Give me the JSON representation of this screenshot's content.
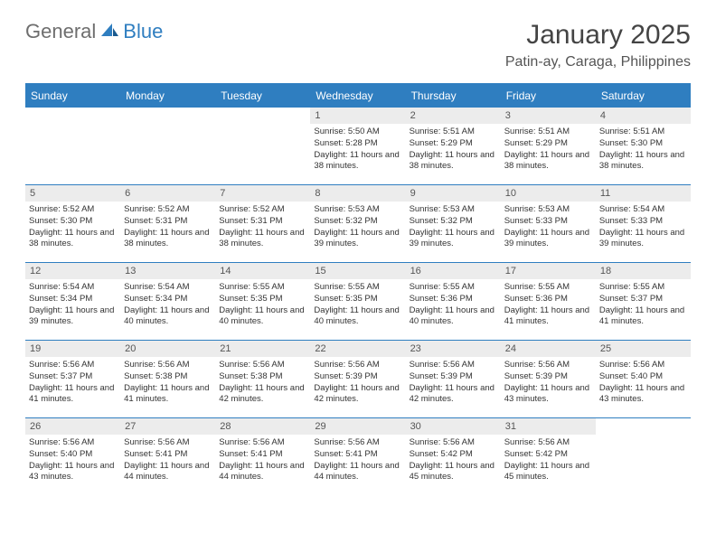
{
  "logo": {
    "part1": "General",
    "part2": "Blue"
  },
  "title": "January 2025",
  "location": "Patin-ay, Caraga, Philippines",
  "colors": {
    "accent": "#2f7ec0",
    "header_text": "#ffffff",
    "logo_gray": "#6e6e6e",
    "logo_blue": "#2f7ec0",
    "day_num_bg": "#ececec",
    "text": "#333333",
    "background": "#ffffff"
  },
  "day_headers": [
    "Sunday",
    "Monday",
    "Tuesday",
    "Wednesday",
    "Thursday",
    "Friday",
    "Saturday"
  ],
  "weeks": [
    [
      null,
      null,
      null,
      {
        "n": "1",
        "sr": "5:50 AM",
        "ss": "5:28 PM",
        "dl": "11 hours and 38 minutes."
      },
      {
        "n": "2",
        "sr": "5:51 AM",
        "ss": "5:29 PM",
        "dl": "11 hours and 38 minutes."
      },
      {
        "n": "3",
        "sr": "5:51 AM",
        "ss": "5:29 PM",
        "dl": "11 hours and 38 minutes."
      },
      {
        "n": "4",
        "sr": "5:51 AM",
        "ss": "5:30 PM",
        "dl": "11 hours and 38 minutes."
      }
    ],
    [
      {
        "n": "5",
        "sr": "5:52 AM",
        "ss": "5:30 PM",
        "dl": "11 hours and 38 minutes."
      },
      {
        "n": "6",
        "sr": "5:52 AM",
        "ss": "5:31 PM",
        "dl": "11 hours and 38 minutes."
      },
      {
        "n": "7",
        "sr": "5:52 AM",
        "ss": "5:31 PM",
        "dl": "11 hours and 38 minutes."
      },
      {
        "n": "8",
        "sr": "5:53 AM",
        "ss": "5:32 PM",
        "dl": "11 hours and 39 minutes."
      },
      {
        "n": "9",
        "sr": "5:53 AM",
        "ss": "5:32 PM",
        "dl": "11 hours and 39 minutes."
      },
      {
        "n": "10",
        "sr": "5:53 AM",
        "ss": "5:33 PM",
        "dl": "11 hours and 39 minutes."
      },
      {
        "n": "11",
        "sr": "5:54 AM",
        "ss": "5:33 PM",
        "dl": "11 hours and 39 minutes."
      }
    ],
    [
      {
        "n": "12",
        "sr": "5:54 AM",
        "ss": "5:34 PM",
        "dl": "11 hours and 39 minutes."
      },
      {
        "n": "13",
        "sr": "5:54 AM",
        "ss": "5:34 PM",
        "dl": "11 hours and 40 minutes."
      },
      {
        "n": "14",
        "sr": "5:55 AM",
        "ss": "5:35 PM",
        "dl": "11 hours and 40 minutes."
      },
      {
        "n": "15",
        "sr": "5:55 AM",
        "ss": "5:35 PM",
        "dl": "11 hours and 40 minutes."
      },
      {
        "n": "16",
        "sr": "5:55 AM",
        "ss": "5:36 PM",
        "dl": "11 hours and 40 minutes."
      },
      {
        "n": "17",
        "sr": "5:55 AM",
        "ss": "5:36 PM",
        "dl": "11 hours and 41 minutes."
      },
      {
        "n": "18",
        "sr": "5:55 AM",
        "ss": "5:37 PM",
        "dl": "11 hours and 41 minutes."
      }
    ],
    [
      {
        "n": "19",
        "sr": "5:56 AM",
        "ss": "5:37 PM",
        "dl": "11 hours and 41 minutes."
      },
      {
        "n": "20",
        "sr": "5:56 AM",
        "ss": "5:38 PM",
        "dl": "11 hours and 41 minutes."
      },
      {
        "n": "21",
        "sr": "5:56 AM",
        "ss": "5:38 PM",
        "dl": "11 hours and 42 minutes."
      },
      {
        "n": "22",
        "sr": "5:56 AM",
        "ss": "5:39 PM",
        "dl": "11 hours and 42 minutes."
      },
      {
        "n": "23",
        "sr": "5:56 AM",
        "ss": "5:39 PM",
        "dl": "11 hours and 42 minutes."
      },
      {
        "n": "24",
        "sr": "5:56 AM",
        "ss": "5:39 PM",
        "dl": "11 hours and 43 minutes."
      },
      {
        "n": "25",
        "sr": "5:56 AM",
        "ss": "5:40 PM",
        "dl": "11 hours and 43 minutes."
      }
    ],
    [
      {
        "n": "26",
        "sr": "5:56 AM",
        "ss": "5:40 PM",
        "dl": "11 hours and 43 minutes."
      },
      {
        "n": "27",
        "sr": "5:56 AM",
        "ss": "5:41 PM",
        "dl": "11 hours and 44 minutes."
      },
      {
        "n": "28",
        "sr": "5:56 AM",
        "ss": "5:41 PM",
        "dl": "11 hours and 44 minutes."
      },
      {
        "n": "29",
        "sr": "5:56 AM",
        "ss": "5:41 PM",
        "dl": "11 hours and 44 minutes."
      },
      {
        "n": "30",
        "sr": "5:56 AM",
        "ss": "5:42 PM",
        "dl": "11 hours and 45 minutes."
      },
      {
        "n": "31",
        "sr": "5:56 AM",
        "ss": "5:42 PM",
        "dl": "11 hours and 45 minutes."
      },
      null
    ]
  ],
  "labels": {
    "sunrise": "Sunrise: ",
    "sunset": "Sunset: ",
    "daylight": "Daylight: "
  }
}
